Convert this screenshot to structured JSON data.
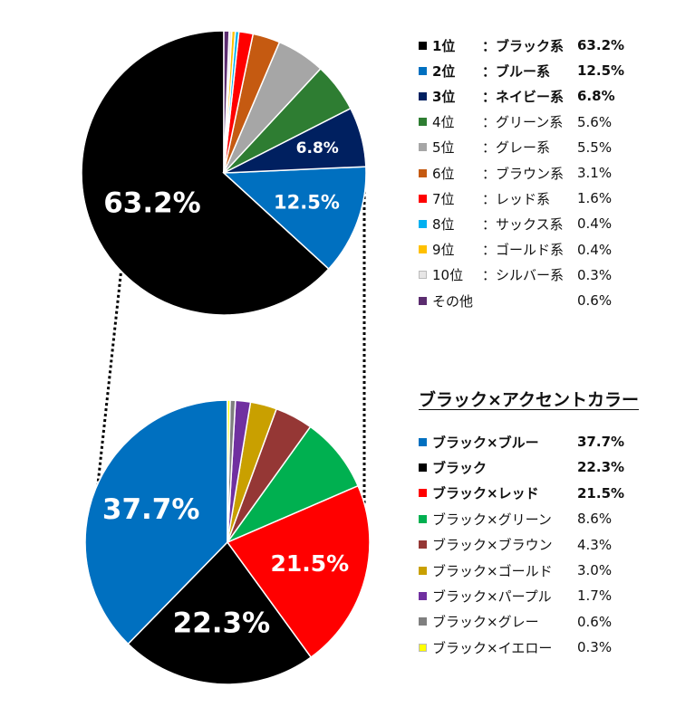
{
  "chart_data": [
    {
      "type": "pie",
      "categories": [
        "ブラック系",
        "ブルー系",
        "ネイビー系",
        "グリーン系",
        "グレー系",
        "ブラウン系",
        "レッド系",
        "サックス系",
        "ゴールド系",
        "シルバー系",
        "その他"
      ],
      "values": [
        63.2,
        12.5,
        6.8,
        5.6,
        5.5,
        3.1,
        1.6,
        0.4,
        0.4,
        0.3,
        0.6
      ],
      "colors": [
        "#000000",
        "#0070c0",
        "#002060",
        "#2e7d32",
        "#a6a6a6",
        "#c55a11",
        "#ff0000",
        "#00b0f0",
        "#ffc000",
        "#e7e6e6",
        "#5b2c6f"
      ],
      "slice_labels": [
        "63.2%",
        "12.5%",
        "6.8%",
        "",
        "",
        "",
        "",
        "",
        "",
        "",
        ""
      ],
      "legend": [
        {
          "rank": "1位",
          "name": "：ブラック系",
          "value": "63.2%",
          "bold": true
        },
        {
          "rank": "2位",
          "name": "：ブルー系",
          "value": "12.5%",
          "bold": true
        },
        {
          "rank": "3位",
          "name": "：ネイビー系",
          "value": "6.8%",
          "bold": true
        },
        {
          "rank": "4位",
          "name": "：グリーン系",
          "value": "5.6%",
          "bold": false
        },
        {
          "rank": "5位",
          "name": "：グレー系",
          "value": "5.5%",
          "bold": false
        },
        {
          "rank": "6位",
          "name": "：ブラウン系",
          "value": "3.1%",
          "bold": false
        },
        {
          "rank": "7位",
          "name": "：レッド系",
          "value": "1.6%",
          "bold": false
        },
        {
          "rank": "8位",
          "name": "：サックス系",
          "value": "0.4%",
          "bold": false
        },
        {
          "rank": "9位",
          "name": "：ゴールド系",
          "value": "0.4%",
          "bold": false
        },
        {
          "rank": "10位",
          "name": "：シルバー系",
          "value": "0.3%",
          "bold": false
        },
        {
          "rank": "",
          "name": "その他",
          "value": "0.6%",
          "bold": false
        }
      ]
    },
    {
      "type": "pie",
      "title": "ブラック×アクセントカラー",
      "categories": [
        "ブラック×ブルー",
        "ブラック",
        "ブラック×レッド",
        "ブラック×グリーン",
        "ブラック×ブラウン",
        "ブラック×ゴールド",
        "ブラック×パープル",
        "ブラック×グレー",
        "ブラック×イエロー"
      ],
      "values": [
        37.7,
        22.3,
        21.5,
        8.6,
        4.3,
        3.0,
        1.7,
        0.6,
        0.3
      ],
      "colors": [
        "#0070c0",
        "#000000",
        "#ff0000",
        "#00b050",
        "#953735",
        "#c9a000",
        "#7030a0",
        "#7f7f7f",
        "#ffff00"
      ],
      "slice_labels": [
        "37.7%",
        "22.3%",
        "21.5%",
        "",
        "",
        "",
        "",
        "",
        ""
      ],
      "legend": [
        {
          "name": "ブラック×ブルー",
          "value": "37.7%",
          "bold": true
        },
        {
          "name": "ブラック",
          "value": "22.3%",
          "bold": true
        },
        {
          "name": "ブラック×レッド",
          "value": "21.5%",
          "bold": true
        },
        {
          "name": "ブラック×グリーン",
          "value": "8.6%",
          "bold": false
        },
        {
          "name": "ブラック×ブラウン",
          "value": "4.3%",
          "bold": false
        },
        {
          "name": "ブラック×ゴールド",
          "value": "3.0%",
          "bold": false
        },
        {
          "name": "ブラック×パープル",
          "value": "1.7%",
          "bold": false
        },
        {
          "name": "ブラック×グレー",
          "value": "0.6%",
          "bold": false
        },
        {
          "name": "ブラック×イエロー",
          "value": "0.3%",
          "bold": false
        }
      ]
    }
  ]
}
